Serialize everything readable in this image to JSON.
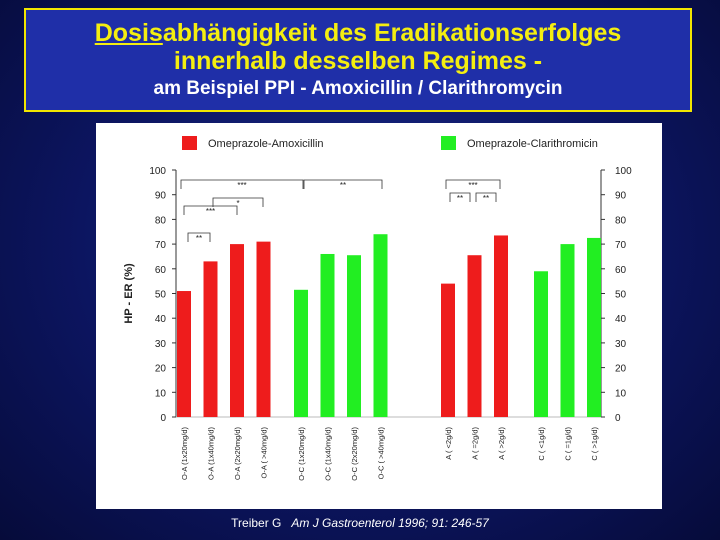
{
  "title": {
    "line1_underlined": "Dosis",
    "line1_rest": "abhängigkeit des Eradikationserfolges",
    "line2": "innerhalb desselben Regimes -",
    "subtitle": "am Beispiel  PPI - Amoxicillin / Clarithromycin"
  },
  "citation": {
    "author": "Treiber G",
    "reference": "Am J Gastroenterol 1996; 91: 246-57"
  },
  "colors": {
    "red": "#ee1c1c",
    "green": "#22ee22",
    "title_yellow": "#f4ee10",
    "background": "#0c1560"
  },
  "chart_data": {
    "type": "bar",
    "ylabel": "HP - ER (%)",
    "ylim": [
      0,
      100
    ],
    "yticks": [
      0,
      10,
      20,
      30,
      40,
      50,
      60,
      70,
      80,
      90,
      100
    ],
    "grid": false,
    "legend_position": "top",
    "legend": [
      {
        "name": "Omeprazole-Amoxicillin",
        "color": "#ee1c1c"
      },
      {
        "name": "Omeprazole-Clarithromicin",
        "color": "#22ee22"
      }
    ],
    "groups": [
      {
        "categories": [
          "O-A (1x20mg/d)",
          "O-A (1x40mg/d)",
          "O-A (2x20mg/d)",
          "O-A ( >40mg/d)"
        ],
        "values": [
          51,
          63,
          70,
          71
        ],
        "color": "#ee1c1c"
      },
      {
        "categories": [
          "O-C (1x20mg/d)",
          "O-C (1x40mg/d)",
          "O-C (2x20mg/d)",
          "O-C ( >40mg/d)"
        ],
        "values": [
          51.5,
          66,
          65.5,
          74
        ],
        "color": "#22ee22"
      },
      {
        "categories": [
          "A ( <2g/d)",
          "A ( =2g/d)",
          "A ( >2g/d)"
        ],
        "values": [
          54,
          65.5,
          73.5
        ],
        "color": "#ee1c1c"
      },
      {
        "categories": [
          "C ( <1g/d)",
          "C ( =1g/d)",
          "C ( >1g/d)"
        ],
        "values": [
          59,
          70,
          72.5
        ],
        "color": "#22ee22"
      }
    ],
    "significance": [
      "***",
      "***",
      "*",
      "**",
      "**",
      "***",
      "**",
      "**"
    ]
  }
}
